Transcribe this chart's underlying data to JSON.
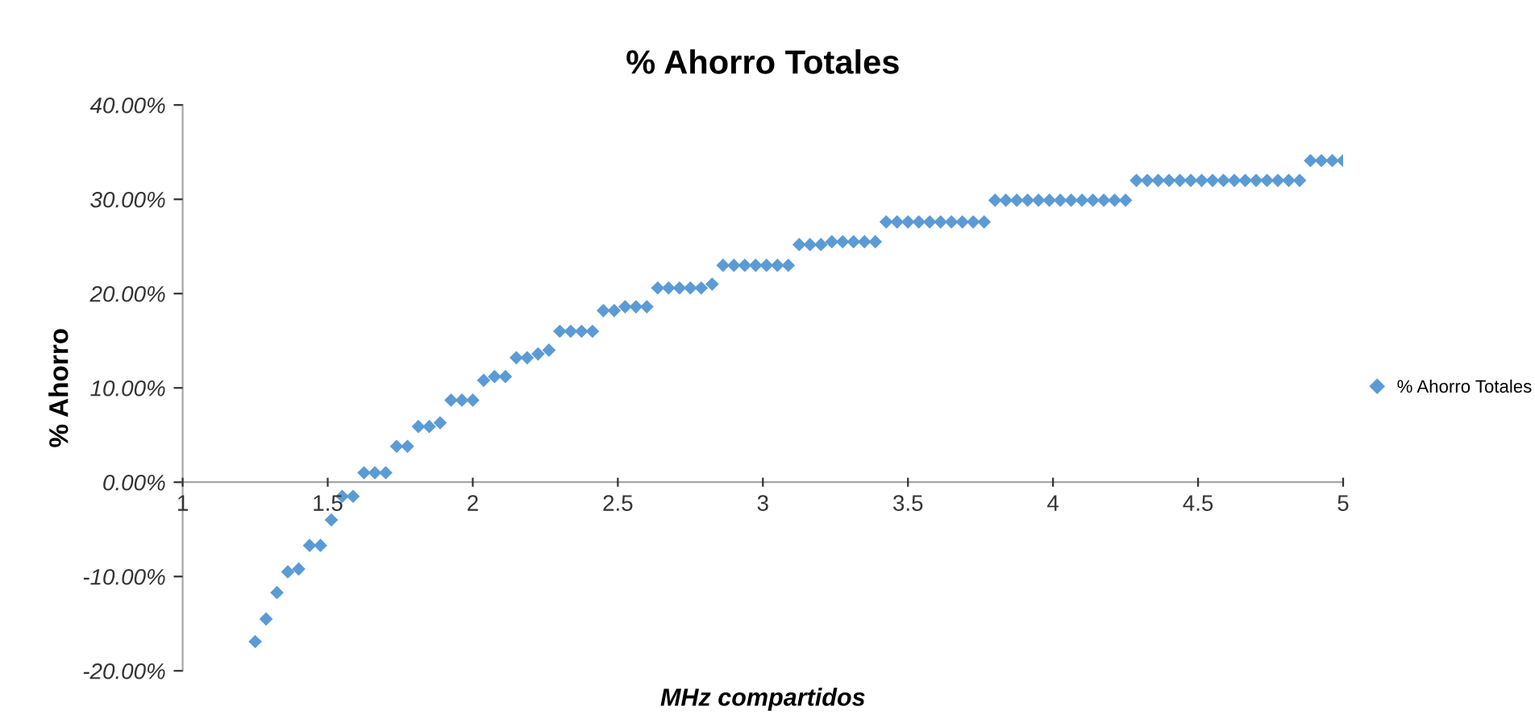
{
  "chart_data": {
    "type": "scatter",
    "title": "% Ahorro Totales",
    "xlabel": "MHz compartidos",
    "ylabel": "% Ahorro",
    "xlim": [
      1,
      5
    ],
    "xticks": [
      1,
      1.5,
      2,
      2.5,
      3,
      3.5,
      4,
      4.5,
      5
    ],
    "ylim": [
      -20,
      40
    ],
    "yticks": [
      {
        "value": -20,
        "label": "-20.00%"
      },
      {
        "value": -10,
        "label": "-10.00%"
      },
      {
        "value": 0,
        "label": "0.00%"
      },
      {
        "value": 10,
        "label": "10.00%"
      },
      {
        "value": 20,
        "label": "20.00%"
      },
      {
        "value": 30,
        "label": "30.00%"
      },
      {
        "value": 40,
        "label": "40.00%"
      }
    ],
    "grid": false,
    "legend": "right",
    "marker": "diamond",
    "series": [
      {
        "name": "% Ahorro Totales",
        "color": "#5b9bd5",
        "x": [
          1.25,
          1.2875,
          1.325,
          1.3625,
          1.4,
          1.4375,
          1.475,
          1.5125,
          1.55,
          1.5875,
          1.625,
          1.6625,
          1.7,
          1.7375,
          1.775,
          1.8125,
          1.85,
          1.8875,
          1.925,
          1.9625,
          2,
          2.0375,
          2.075,
          2.1125,
          2.15,
          2.1875,
          2.225,
          2.2625,
          2.3,
          2.3375,
          2.375,
          2.4125,
          2.45,
          2.4875,
          2.525,
          2.5625,
          2.6,
          2.6375,
          2.675,
          2.7125,
          2.75,
          2.7875,
          2.825,
          2.8625,
          2.9,
          2.9375,
          2.975,
          3.0125,
          3.05,
          3.0875,
          3.125,
          3.1625,
          3.2,
          3.2375,
          3.275,
          3.3125,
          3.35,
          3.3875,
          3.425,
          3.4625,
          3.5,
          3.5375,
          3.575,
          3.6125,
          3.65,
          3.6875,
          3.725,
          3.7625,
          3.8,
          3.8375,
          3.875,
          3.9125,
          3.95,
          3.9875,
          4.025,
          4.0625,
          4.1,
          4.1375,
          4.175,
          4.2125,
          4.25,
          4.2875,
          4.325,
          4.3625,
          4.4,
          4.4375,
          4.475,
          4.5125,
          4.55,
          4.5875,
          4.625,
          4.6625,
          4.7,
          4.7375,
          4.775,
          4.8125,
          4.85,
          4.8875,
          4.925,
          4.9625,
          5
        ],
        "values": [
          -16.9,
          -14.5,
          -11.7,
          -9.5,
          -9.2,
          -6.7,
          -6.7,
          -4.0,
          -1.5,
          -1.5,
          1.0,
          1.0,
          1.0,
          3.8,
          3.8,
          5.9,
          5.9,
          6.3,
          8.7,
          8.7,
          8.7,
          10.8,
          11.2,
          11.2,
          13.2,
          13.2,
          13.6,
          14.0,
          16.0,
          16.0,
          16.0,
          16.0,
          18.2,
          18.2,
          18.6,
          18.6,
          18.6,
          20.6,
          20.6,
          20.6,
          20.6,
          20.6,
          21.0,
          23.0,
          23.0,
          23.0,
          23.0,
          23.0,
          23.0,
          23.0,
          25.2,
          25.2,
          25.2,
          25.5,
          25.5,
          25.5,
          25.5,
          25.5,
          27.6,
          27.6,
          27.6,
          27.6,
          27.6,
          27.6,
          27.6,
          27.6,
          27.6,
          27.6,
          29.9,
          29.9,
          29.9,
          29.9,
          29.9,
          29.9,
          29.9,
          29.9,
          29.9,
          29.9,
          29.9,
          29.9,
          29.9,
          32.0,
          32.0,
          32.0,
          32.0,
          32.0,
          32.0,
          32.0,
          32.0,
          32.0,
          32.0,
          32.0,
          32.0,
          32.0,
          32.0,
          32.0,
          32.0,
          34.1,
          34.1,
          34.1,
          34.1
        ]
      }
    ]
  }
}
